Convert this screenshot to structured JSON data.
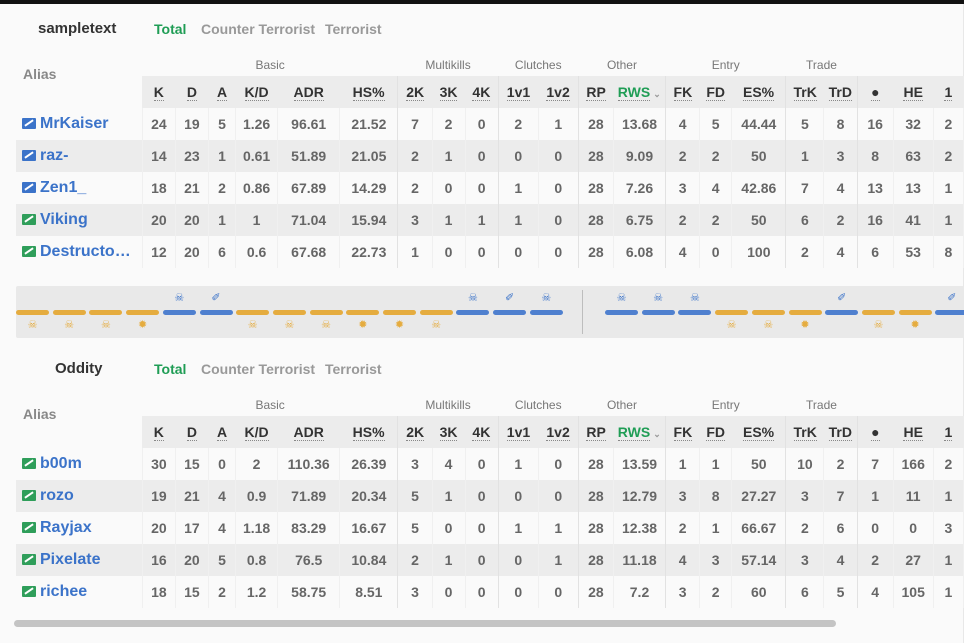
{
  "tabs": [
    "Total",
    "Counter Terrorist",
    "Terrorist"
  ],
  "groups": {
    "basic": "Basic",
    "multikills": "Multikills",
    "clutches": "Clutches",
    "other": "Other",
    "entry": "Entry",
    "trade": "Trade"
  },
  "columns": {
    "alias": "Alias",
    "k": "K",
    "d": "D",
    "a": "A",
    "kd": "K/D",
    "adr": "ADR",
    "hs": "HS%",
    "k2": "2K",
    "k3": "3K",
    "k4": "4K",
    "c1v1": "1v1",
    "c1v2": "1v2",
    "rp": "RP",
    "rws": "RWS",
    "fk": "FK",
    "fd": "FD",
    "es": "ES%",
    "trk": "TrK",
    "trd": "TrD",
    "grenade": "●",
    "he": "HE",
    "more": "1"
  },
  "teams": [
    {
      "name": "sampletext",
      "players": [
        {
          "alias": "MrKaiser",
          "side": "ct",
          "k": "24",
          "d": "19",
          "a": "5",
          "kd": "1.26",
          "adr": "96.61",
          "hs": "21.52",
          "k2": "7",
          "k3": "2",
          "k4": "0",
          "c1v1": "2",
          "c1v2": "1",
          "rp": "28",
          "rws": "13.68",
          "fk": "4",
          "fd": "5",
          "es": "44.44",
          "trk": "5",
          "trd": "8",
          "nade": "16",
          "he": "32",
          "more": "2"
        },
        {
          "alias": "raz-",
          "side": "ct",
          "k": "14",
          "d": "23",
          "a": "1",
          "kd": "0.61",
          "adr": "51.89",
          "hs": "21.05",
          "k2": "2",
          "k3": "1",
          "k4": "0",
          "c1v1": "0",
          "c1v2": "0",
          "rp": "28",
          "rws": "9.09",
          "fk": "2",
          "fd": "2",
          "es": "50",
          "trk": "1",
          "trd": "3",
          "nade": "8",
          "he": "63",
          "more": "2"
        },
        {
          "alias": "Zen1_",
          "side": "ct",
          "k": "18",
          "d": "21",
          "a": "2",
          "kd": "0.86",
          "adr": "67.89",
          "hs": "14.29",
          "k2": "2",
          "k3": "0",
          "k4": "0",
          "c1v1": "1",
          "c1v2": "0",
          "rp": "28",
          "rws": "7.26",
          "fk": "3",
          "fd": "4",
          "es": "42.86",
          "trk": "7",
          "trd": "4",
          "nade": "13",
          "he": "13",
          "more": "1"
        },
        {
          "alias": "Viking",
          "side": "t",
          "k": "20",
          "d": "20",
          "a": "1",
          "kd": "1",
          "adr": "71.04",
          "hs": "15.94",
          "k2": "3",
          "k3": "1",
          "k4": "1",
          "c1v1": "1",
          "c1v2": "0",
          "rp": "28",
          "rws": "6.75",
          "fk": "2",
          "fd": "2",
          "es": "50",
          "trk": "6",
          "trd": "2",
          "nade": "16",
          "he": "41",
          "more": "1"
        },
        {
          "alias": "DestructoDisk",
          "side": "t",
          "k": "12",
          "d": "20",
          "a": "6",
          "kd": "0.6",
          "adr": "67.68",
          "hs": "22.73",
          "k2": "1",
          "k3": "0",
          "k4": "0",
          "c1v1": "0",
          "c1v2": "0",
          "rp": "28",
          "rws": "6.08",
          "fk": "4",
          "fd": "0",
          "es": "100",
          "trk": "2",
          "trd": "4",
          "nade": "6",
          "he": "53",
          "more": "8"
        }
      ]
    },
    {
      "name": "Oddity",
      "players": [
        {
          "alias": "b00m",
          "side": "t",
          "k": "30",
          "d": "15",
          "a": "0",
          "kd": "2",
          "adr": "110.36",
          "hs": "26.39",
          "k2": "3",
          "k3": "4",
          "k4": "0",
          "c1v1": "1",
          "c1v2": "0",
          "rp": "28",
          "rws": "13.59",
          "fk": "1",
          "fd": "1",
          "es": "50",
          "trk": "10",
          "trd": "2",
          "nade": "7",
          "he": "166",
          "more": "2"
        },
        {
          "alias": "rozo",
          "side": "t",
          "k": "19",
          "d": "21",
          "a": "4",
          "kd": "0.9",
          "adr": "71.89",
          "hs": "20.34",
          "k2": "5",
          "k3": "1",
          "k4": "0",
          "c1v1": "0",
          "c1v2": "0",
          "rp": "28",
          "rws": "12.79",
          "fk": "3",
          "fd": "8",
          "es": "27.27",
          "trk": "3",
          "trd": "7",
          "nade": "1",
          "he": "11",
          "more": "1"
        },
        {
          "alias": "Rayjax",
          "side": "t",
          "k": "20",
          "d": "17",
          "a": "4",
          "kd": "1.18",
          "adr": "83.29",
          "hs": "16.67",
          "k2": "5",
          "k3": "0",
          "k4": "0",
          "c1v1": "1",
          "c1v2": "1",
          "rp": "28",
          "rws": "12.38",
          "fk": "2",
          "fd": "1",
          "es": "66.67",
          "trk": "2",
          "trd": "6",
          "nade": "0",
          "he": "0",
          "more": "3"
        },
        {
          "alias": "Pixelate",
          "side": "t",
          "k": "16",
          "d": "20",
          "a": "5",
          "kd": "0.8",
          "adr": "76.5",
          "hs": "10.84",
          "k2": "2",
          "k3": "1",
          "k4": "0",
          "c1v1": "0",
          "c1v2": "1",
          "rp": "28",
          "rws": "11.18",
          "fk": "4",
          "fd": "3",
          "es": "57.14",
          "trk": "3",
          "trd": "4",
          "nade": "2",
          "he": "27",
          "more": "1"
        },
        {
          "alias": "richee",
          "side": "t",
          "k": "18",
          "d": "15",
          "a": "2",
          "kd": "1.2",
          "adr": "58.75",
          "hs": "8.51",
          "k2": "3",
          "k3": "0",
          "k4": "0",
          "c1v1": "0",
          "c1v2": "0",
          "rp": "28",
          "rws": "7.2",
          "fk": "3",
          "fd": "2",
          "es": "60",
          "trk": "6",
          "trd": "5",
          "nade": "4",
          "he": "105",
          "more": "1"
        }
      ]
    }
  ],
  "rounds": {
    "first_half": [
      {
        "winner": "t",
        "icon": "skull"
      },
      {
        "winner": "t",
        "icon": "skull"
      },
      {
        "winner": "t",
        "icon": "skull"
      },
      {
        "winner": "t",
        "icon": "bomb"
      },
      {
        "winner": "ct",
        "icon": "skull"
      },
      {
        "winner": "ct",
        "icon": "defuse"
      },
      {
        "winner": "t",
        "icon": "skull"
      },
      {
        "winner": "t",
        "icon": "skull"
      },
      {
        "winner": "t",
        "icon": "skull"
      },
      {
        "winner": "t",
        "icon": "bomb"
      },
      {
        "winner": "t",
        "icon": "bomb"
      },
      {
        "winner": "t",
        "icon": "skull"
      },
      {
        "winner": "ct",
        "icon": "skull"
      },
      {
        "winner": "ct",
        "icon": "defuse"
      },
      {
        "winner": "ct",
        "icon": "skull"
      }
    ],
    "second_half": [
      {
        "winner": "ct",
        "icon": "skull"
      },
      {
        "winner": "ct",
        "icon": "skull"
      },
      {
        "winner": "ct",
        "icon": "skull"
      },
      {
        "winner": "t",
        "icon": "skull"
      },
      {
        "winner": "t",
        "icon": "skull"
      },
      {
        "winner": "t",
        "icon": "bomb"
      },
      {
        "winner": "ct",
        "icon": "defuse"
      },
      {
        "winner": "t",
        "icon": "skull"
      },
      {
        "winner": "t",
        "icon": "bomb"
      },
      {
        "winner": "ct",
        "icon": "defuse"
      }
    ]
  }
}
